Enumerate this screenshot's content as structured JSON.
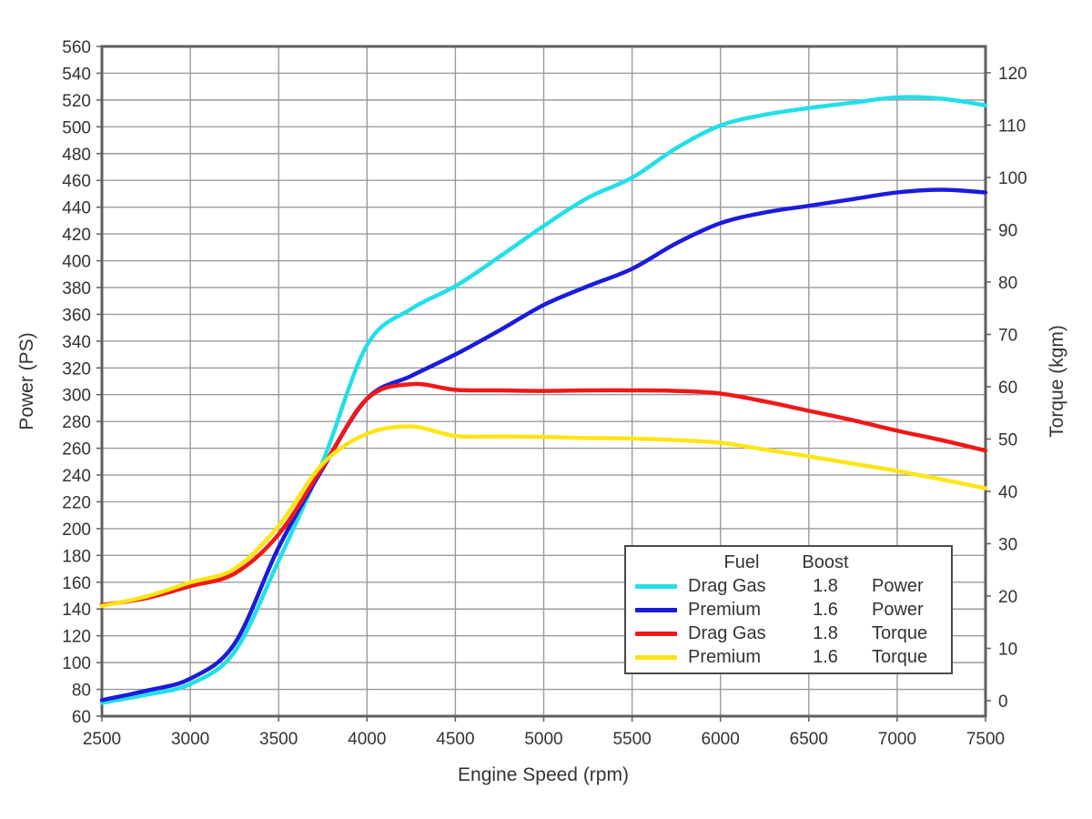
{
  "chart_data": {
    "type": "line",
    "title": "",
    "xlabel": "Engine Speed (rpm)",
    "ylabel": "Power (PS)",
    "y2label": "Torque (kgm)",
    "xlim": [
      2500,
      7500
    ],
    "xtick_step": 500,
    "ylim": [
      60,
      560
    ],
    "ytick_step": 20,
    "y2lim": [
      -2.96,
      125.04
    ],
    "y2tick_min": 0,
    "y2tick_max": 120,
    "y2tick_step": 10,
    "grid": true,
    "legend_position": "lower right",
    "x": [
      2500,
      2750,
      3000,
      3250,
      3500,
      3750,
      4000,
      4250,
      4500,
      4750,
      5000,
      5250,
      5500,
      5750,
      6000,
      6250,
      6500,
      6750,
      7000,
      7250,
      7500
    ],
    "series": [
      {
        "name": "Drag Gas 1.8 Power",
        "fuel": "Drag Gas",
        "boost": "1.8",
        "quantity": "Power",
        "axis": "left",
        "unit": "PS",
        "color": "#22dfe8",
        "values": [
          70,
          76,
          84,
          108,
          176,
          250,
          337,
          364,
          381,
          403,
          426,
          447,
          462,
          484,
          501,
          509,
          514,
          518,
          522,
          521,
          516
        ]
      },
      {
        "name": "Premium 1.6 Power",
        "fuel": "Premium",
        "boost": "1.6",
        "quantity": "Power",
        "axis": "left",
        "unit": "PS",
        "color": "#1b1bdd",
        "values": [
          72,
          79,
          88,
          114,
          186,
          245,
          297,
          314,
          330,
          348,
          367,
          381,
          394,
          413,
          428,
          436,
          441,
          446,
          451,
          453,
          451
        ]
      },
      {
        "name": "Drag Gas 1.8 Torque",
        "fuel": "Drag Gas",
        "boost": "1.8",
        "quantity": "Torque",
        "axis": "right",
        "unit": "kgm",
        "color": "#f01818",
        "values": [
          18.3,
          19.6,
          21.9,
          24.3,
          31.8,
          44.7,
          57.7,
          60.5,
          59.4,
          59.3,
          59.2,
          59.3,
          59.3,
          59.2,
          58.7,
          57.2,
          55.4,
          53.6,
          51.6,
          49.8,
          47.8
        ]
      },
      {
        "name": "Premium 1.6 Torque",
        "fuel": "Premium",
        "boost": "1.6",
        "quantity": "Torque",
        "axis": "right",
        "unit": "kgm",
        "color": "#ffe417",
        "values": [
          18.1,
          19.9,
          22.6,
          25.2,
          33.4,
          45.3,
          51.0,
          52.4,
          50.6,
          50.5,
          50.4,
          50.2,
          50.1,
          49.8,
          49.3,
          48.0,
          46.7,
          45.3,
          43.9,
          42.3,
          40.6
        ]
      }
    ]
  },
  "legend": {
    "header_fuel": "Fuel",
    "header_boost": "Boost",
    "rows": [
      {
        "fuel": "Drag Gas",
        "boost": "1.8",
        "quantity": "Power"
      },
      {
        "fuel": "Premium",
        "boost": "1.6",
        "quantity": "Power"
      },
      {
        "fuel": "Drag Gas",
        "boost": "1.8",
        "quantity": "Torque"
      },
      {
        "fuel": "Premium",
        "boost": "1.6",
        "quantity": "Torque"
      }
    ]
  },
  "colors": {
    "grid": "#9b9b9b",
    "border": "#5f5f5f",
    "text": "#333333",
    "background": "#ffffff",
    "series_cyan": "#22dfe8",
    "series_blue": "#1b1bdd",
    "series_red": "#f01818",
    "series_yellow": "#ffe417"
  }
}
